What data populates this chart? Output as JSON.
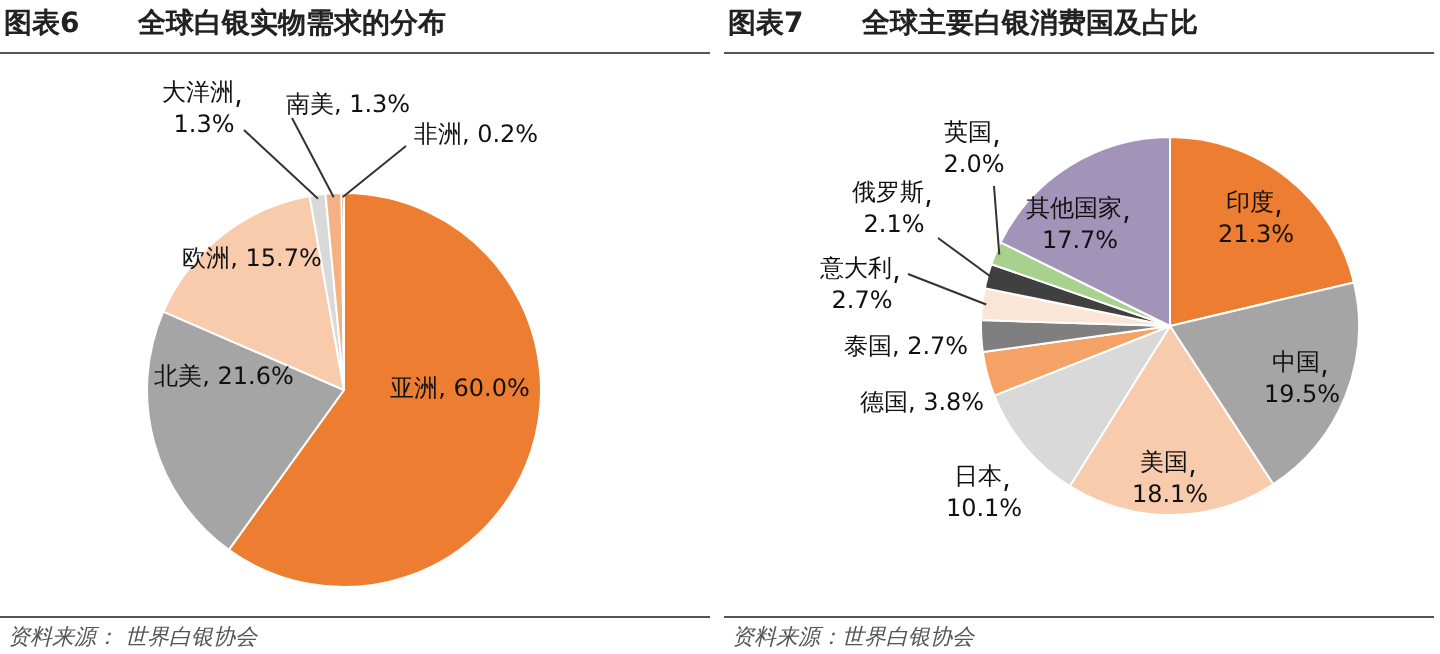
{
  "chart_data": [
    {
      "type": "pie",
      "title": "图表6      全球白银实物需求的分布",
      "categories": [
        "亚洲",
        "北美",
        "欧洲",
        "大洋洲",
        "南美",
        "非洲"
      ],
      "values": [
        60.0,
        21.6,
        15.7,
        1.3,
        1.3,
        0.2
      ],
      "value_labels": [
        "60.0%",
        "21.6%",
        "15.7%",
        "1.3%",
        "1.3%",
        "0.2%"
      ],
      "colors": [
        "#ed7d31",
        "#a5a5a5",
        "#f8cbad",
        "#d9d9d9",
        "#f4b183",
        "#c55a11"
      ],
      "legend": false,
      "annotations": [
        "资料来源： 世界白银协会"
      ]
    },
    {
      "type": "pie",
      "title": "图表7      全球主要白银消费国及占比",
      "categories": [
        "印度",
        "中国",
        "美国",
        "日本",
        "德国",
        "泰国",
        "意大利",
        "俄罗斯",
        "英国",
        "其他国家"
      ],
      "values": [
        21.3,
        19.5,
        18.1,
        10.1,
        3.8,
        2.7,
        2.7,
        2.1,
        2.0,
        17.7
      ],
      "value_labels": [
        "21.3%",
        "19.5%",
        "18.1%",
        "10.1%",
        "3.8%",
        "2.7%",
        "2.7%",
        "2.1%",
        "2.0%",
        "17.7%"
      ],
      "colors": [
        "#ed7d31",
        "#a5a5a5",
        "#f8cbad",
        "#d9d9d9",
        "#f4a265",
        "#7f7f7f",
        "#fbe5d6",
        "#404040",
        "#a9d18e",
        "#a294b8"
      ],
      "legend": false,
      "annotations": [
        "资料来源：世界白银协会"
      ]
    }
  ]
}
